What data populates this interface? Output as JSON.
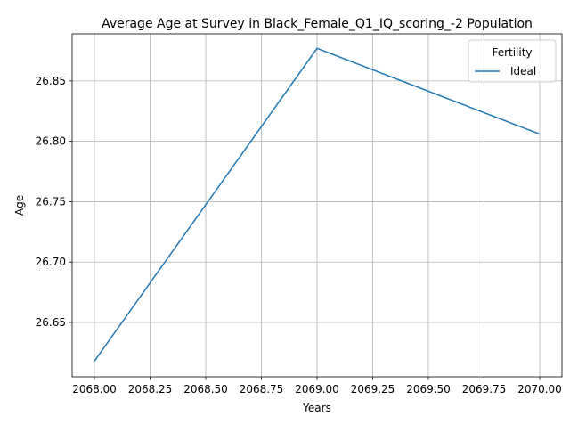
{
  "chart_data": {
    "type": "line",
    "title": "Average Age at Survey in Black_Female_Q1_IQ_scoring_-2 Population",
    "xlabel": "Years",
    "ylabel": "Age",
    "x_ticks": [
      "2068.00",
      "2068.25",
      "2068.50",
      "2068.75",
      "2069.00",
      "2069.25",
      "2069.50",
      "2069.75",
      "2070.00"
    ],
    "y_ticks": [
      "26.65",
      "26.70",
      "26.75",
      "26.80",
      "26.85"
    ],
    "x_tick_values": [
      2068.0,
      2068.25,
      2068.5,
      2068.75,
      2069.0,
      2069.25,
      2069.5,
      2069.75,
      2070.0
    ],
    "y_tick_values": [
      26.65,
      26.7,
      26.75,
      26.8,
      26.85
    ],
    "xlim": [
      2067.9,
      2070.1
    ],
    "ylim": [
      26.605,
      26.889
    ],
    "grid": true,
    "legend": {
      "title": "Fertility",
      "position": "top-right"
    },
    "series": [
      {
        "name": "Ideal",
        "color": "#1f77b4",
        "x": [
          2068,
          2069,
          2070
        ],
        "y": [
          26.618,
          26.877,
          26.806
        ]
      }
    ]
  }
}
